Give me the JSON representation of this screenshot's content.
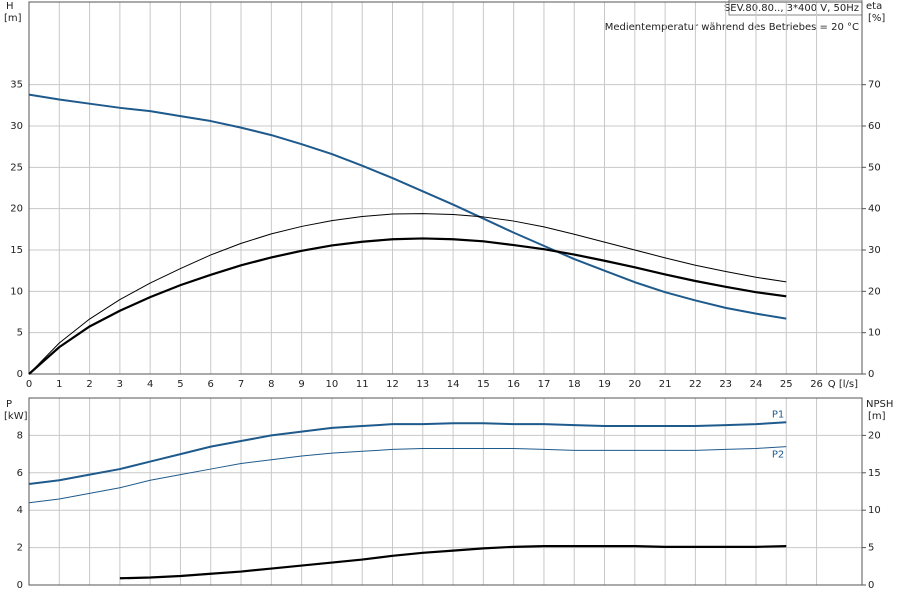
{
  "chart_data": [
    {
      "type": "line",
      "title": "SEV.80.80.., 3*400 V, 50Hz",
      "annotation": "Medientemperatur während des Betriebes = 20 °C",
      "x_label": "Q [l/s]",
      "y_label": "H",
      "y_unit": "[m]",
      "y2_label": "eta",
      "y2_unit": "[%]",
      "x": [
        0,
        1,
        2,
        3,
        4,
        5,
        6,
        7,
        8,
        9,
        10,
        11,
        12,
        13,
        14,
        15,
        16,
        17,
        18,
        19,
        20,
        21,
        22,
        23,
        24,
        25
      ],
      "xlim": [
        0,
        27.5
      ],
      "xticks": [
        0,
        1,
        2,
        3,
        4,
        5,
        6,
        7,
        8,
        9,
        10,
        11,
        12,
        13,
        14,
        15,
        16,
        17,
        18,
        19,
        20,
        21,
        22,
        23,
        24,
        25,
        26
      ],
      "ylim": [
        0,
        45
      ],
      "yticks": [
        0,
        5,
        10,
        15,
        20,
        25,
        30,
        35
      ],
      "y2lim": [
        0,
        90
      ],
      "y2ticks": [
        0,
        10,
        20,
        30,
        40,
        50,
        60,
        70
      ],
      "grid": true,
      "series": [
        {
          "color": "#1f5a8c",
          "line_width": 2,
          "values": [
            33.8,
            33.2,
            32.7,
            32.2,
            31.8,
            31.2,
            30.6,
            29.8,
            28.9,
            27.8,
            26.6,
            25.2,
            23.7,
            22.1,
            20.5,
            18.8,
            17.1,
            15.5,
            13.9,
            12.5,
            11.1,
            9.9,
            8.9,
            8.0,
            7.3,
            6.7
          ]
        },
        {
          "color": "#000000",
          "line_width": 2.2,
          "axis": "y2",
          "values": [
            0,
            6.5,
            11.5,
            15.3,
            18.6,
            21.5,
            24,
            26.3,
            28.2,
            29.8,
            31.1,
            32,
            32.6,
            32.8,
            32.6,
            32.1,
            31.2,
            30.2,
            28.9,
            27.4,
            25.8,
            24.1,
            22.5,
            21.1,
            19.8,
            18.8
          ]
        },
        {
          "color": "#000000",
          "line_width": 1,
          "axis": "y2",
          "values": [
            0,
            7.5,
            13.3,
            18,
            22,
            25.5,
            28.8,
            31.6,
            33.9,
            35.7,
            37.1,
            38.1,
            38.7,
            38.8,
            38.6,
            38,
            37,
            35.6,
            33.8,
            31.9,
            30,
            28.1,
            26.3,
            24.8,
            23.4,
            22.3
          ]
        }
      ]
    },
    {
      "type": "line",
      "y_label": "P",
      "y_unit": "[kW]",
      "y2_label": "NPSH",
      "y2_unit": "[m]",
      "x": [
        0,
        1,
        2,
        3,
        4,
        5,
        6,
        7,
        8,
        9,
        10,
        11,
        12,
        13,
        14,
        15,
        16,
        17,
        18,
        19,
        20,
        21,
        22,
        23,
        24,
        25
      ],
      "xlim": [
        0,
        27.5
      ],
      "ylim": [
        0,
        10
      ],
      "yticks": [
        0,
        2,
        4,
        6,
        8
      ],
      "y2lim": [
        0,
        25
      ],
      "y2ticks": [
        0,
        5,
        10,
        15,
        20
      ],
      "grid": true,
      "series": [
        {
          "name": "P1",
          "color": "#1f5a8c",
          "line_width": 2,
          "values": [
            5.4,
            5.6,
            5.9,
            6.2,
            6.6,
            7.0,
            7.4,
            7.7,
            8.0,
            8.2,
            8.4,
            8.5,
            8.6,
            8.6,
            8.65,
            8.65,
            8.6,
            8.6,
            8.55,
            8.5,
            8.5,
            8.5,
            8.5,
            8.55,
            8.6,
            8.7
          ]
        },
        {
          "name": "P2",
          "color": "#1f5a8c",
          "line_width": 1,
          "values": [
            4.4,
            4.6,
            4.9,
            5.2,
            5.6,
            5.9,
            6.2,
            6.5,
            6.7,
            6.9,
            7.05,
            7.15,
            7.25,
            7.3,
            7.3,
            7.3,
            7.3,
            7.25,
            7.2,
            7.2,
            7.2,
            7.2,
            7.2,
            7.25,
            7.3,
            7.4
          ]
        },
        {
          "color": "#000000",
          "line_width": 2.2,
          "axis": "y2",
          "values": [
            null,
            null,
            null,
            0.9,
            1.0,
            1.2,
            1.5,
            1.8,
            2.2,
            2.6,
            3.0,
            3.4,
            3.9,
            4.3,
            4.6,
            4.9,
            5.1,
            5.2,
            5.2,
            5.2,
            5.2,
            5.1,
            5.1,
            5.1,
            5.1,
            5.2
          ]
        }
      ]
    }
  ]
}
